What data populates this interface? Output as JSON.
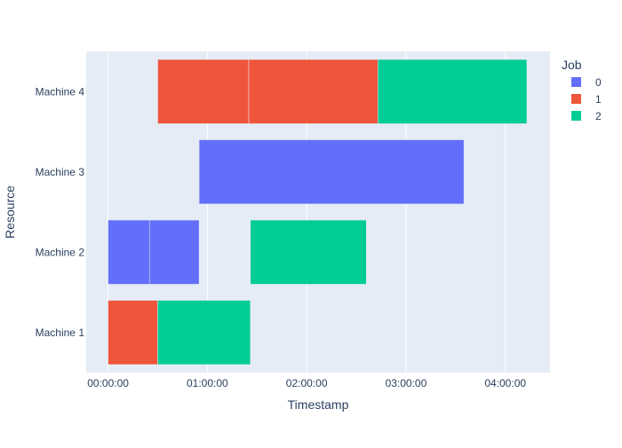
{
  "chart_data": {
    "type": "gantt",
    "title": "",
    "xlabel": "Timestamp",
    "ylabel": "Resource",
    "x_unit": "hours",
    "xlim": [
      -0.22,
      4.45
    ],
    "x_ticks": [
      {
        "value": 0,
        "label": "00:00:00"
      },
      {
        "value": 1,
        "label": "01:00:00"
      },
      {
        "value": 2,
        "label": "02:00:00"
      },
      {
        "value": 3,
        "label": "03:00:00"
      },
      {
        "value": 4,
        "label": "04:00:00"
      }
    ],
    "categories": [
      "Machine 1",
      "Machine 2",
      "Machine 3",
      "Machine 4"
    ],
    "grid": true,
    "legend": {
      "title": "Job",
      "placement": "top-right",
      "entries": [
        {
          "name": "0",
          "color": "#636efa"
        },
        {
          "name": "1",
          "color": "#ef553b"
        },
        {
          "name": "2",
          "color": "#00cc96"
        }
      ]
    },
    "tasks": [
      {
        "resource": "Machine 1",
        "job": "1",
        "start": 0.0,
        "end": 0.5
      },
      {
        "resource": "Machine 1",
        "job": "2",
        "start": 0.5,
        "end": 1.433
      },
      {
        "resource": "Machine 2",
        "job": "0",
        "start": 0.0,
        "end": 0.417
      },
      {
        "resource": "Machine 2",
        "job": "0",
        "start": 0.417,
        "end": 0.917
      },
      {
        "resource": "Machine 2",
        "job": "2",
        "start": 1.433,
        "end": 2.6
      },
      {
        "resource": "Machine 3",
        "job": "0",
        "start": 0.917,
        "end": 3.583
      },
      {
        "resource": "Machine 4",
        "job": "1",
        "start": 0.5,
        "end": 1.417
      },
      {
        "resource": "Machine 4",
        "job": "1",
        "start": 1.417,
        "end": 2.717
      },
      {
        "resource": "Machine 4",
        "job": "2",
        "start": 2.717,
        "end": 4.217
      }
    ]
  }
}
